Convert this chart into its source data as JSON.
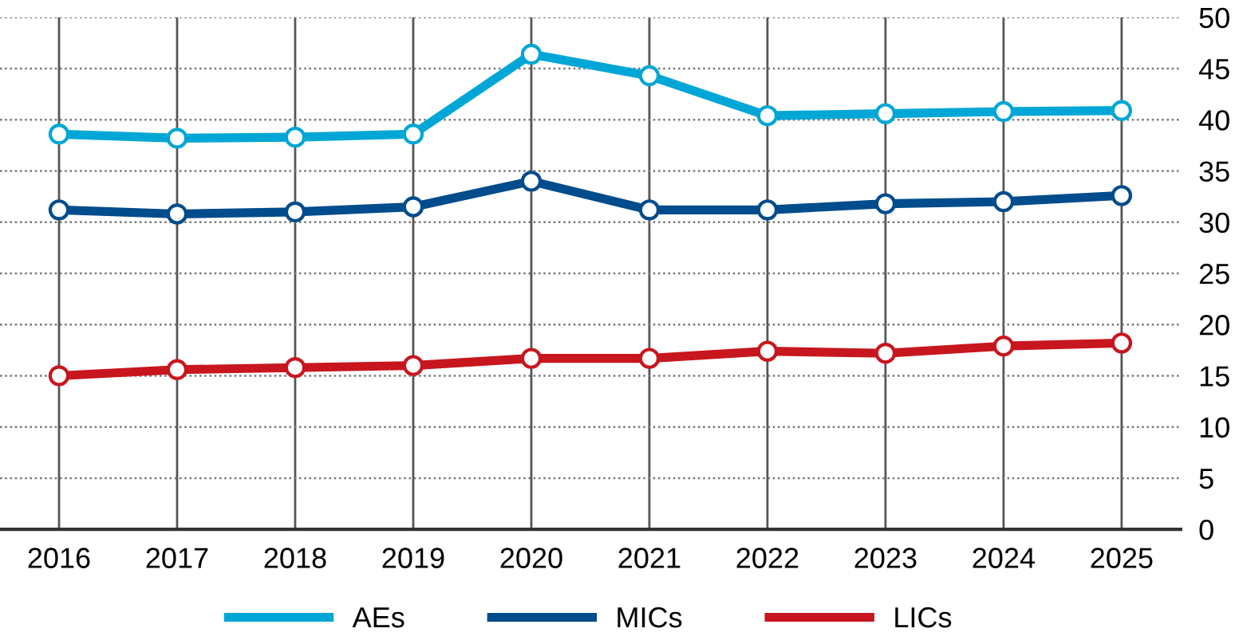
{
  "chart_data": {
    "type": "line",
    "categories": [
      "2016",
      "2017",
      "2018",
      "2019",
      "2020",
      "2021",
      "2022",
      "2023",
      "2024",
      "2025"
    ],
    "series": [
      {
        "name": "AEs",
        "color": "#00a6d6",
        "values": [
          38.6,
          38.2,
          38.3,
          38.6,
          46.4,
          44.3,
          40.4,
          40.6,
          40.8,
          40.9
        ]
      },
      {
        "name": "MICs",
        "color": "#004c8c",
        "values": [
          31.2,
          30.8,
          31.0,
          31.5,
          34.0,
          31.2,
          31.2,
          31.8,
          32.0,
          32.6
        ]
      },
      {
        "name": "LICs",
        "color": "#c8161e",
        "values": [
          15.0,
          15.6,
          15.8,
          16.0,
          16.7,
          16.7,
          17.4,
          17.2,
          17.9,
          18.2
        ]
      }
    ],
    "ylim": [
      0,
      50
    ],
    "yticks": [
      0,
      5,
      10,
      15,
      20,
      25,
      30,
      35,
      40,
      45,
      50
    ],
    "grid": true,
    "legend": "bottom",
    "marker": "circle",
    "line_style": "solid"
  }
}
